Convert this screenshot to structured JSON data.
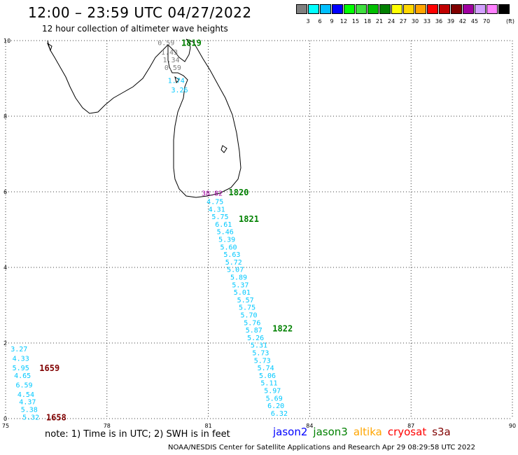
{
  "header": {
    "title": "12:00 – 23:59 UTC 04/27/2022",
    "subtitle": "12 hour collection of altimeter wave heights"
  },
  "color_scale": {
    "swatches": [
      {
        "label": "",
        "color": "#7f7f7f"
      },
      {
        "label": "3",
        "color": "#00ffff"
      },
      {
        "label": "6",
        "color": "#00bfff"
      },
      {
        "label": "9",
        "color": "#0000ff"
      },
      {
        "label": "12",
        "color": "#00ff00"
      },
      {
        "label": "15",
        "color": "#3fdf3f"
      },
      {
        "label": "18",
        "color": "#00bf00"
      },
      {
        "label": "21",
        "color": "#008000"
      },
      {
        "label": "24",
        "color": "#ffff00"
      },
      {
        "label": "27",
        "color": "#ffd700"
      },
      {
        "label": "30",
        "color": "#ffa500"
      },
      {
        "label": "33",
        "color": "#ff0000"
      },
      {
        "label": "36",
        "color": "#c00000"
      },
      {
        "label": "39",
        "color": "#800000"
      },
      {
        "label": "42",
        "color": "#a000a0"
      },
      {
        "label": "45",
        "color": "#d2a0ff"
      },
      {
        "label": "70",
        "color": "#ff80ff"
      },
      {
        "label": "",
        "color": "#000000"
      }
    ],
    "unit": "(ft)"
  },
  "axes": {
    "x": {
      "min": 75,
      "max": 90,
      "ticks": [
        "75",
        "78",
        "81",
        "84",
        "87",
        "90"
      ]
    },
    "y": {
      "min": 0,
      "max": 10,
      "ticks": [
        "0",
        "2",
        "4",
        "6",
        "8",
        "10"
      ]
    },
    "grid": "dotted"
  },
  "pass_labels": [
    {
      "text": "1819",
      "lon": 80.2,
      "lat": 9.95,
      "color": "#008000"
    },
    {
      "text": "1820",
      "lon": 81.6,
      "lat": 6.0,
      "color": "#008000"
    },
    {
      "text": "1821",
      "lon": 81.9,
      "lat": 5.3,
      "color": "#008000"
    },
    {
      "text": "1822",
      "lon": 82.9,
      "lat": 2.4,
      "color": "#008000"
    },
    {
      "text": "1659",
      "lon": 76.0,
      "lat": 1.35,
      "color": "#800000"
    },
    {
      "text": "1658",
      "lon": 76.2,
      "lat": 0.05,
      "color": "#800000"
    }
  ],
  "observations": [
    {
      "text": "0.59",
      "lon": 79.5,
      "lat": 9.95,
      "color": "#7f7f7f"
    },
    {
      "text": "1.43",
      "lon": 79.6,
      "lat": 9.7,
      "color": "#7f7f7f"
    },
    {
      "text": "1.34",
      "lon": 79.65,
      "lat": 9.5,
      "color": "#7f7f7f"
    },
    {
      "text": "0.59",
      "lon": 79.7,
      "lat": 9.3,
      "color": "#7f7f7f"
    },
    {
      "text": "1.74",
      "lon": 79.8,
      "lat": 8.95,
      "color": "#00c8ff"
    },
    {
      "text": "3.26",
      "lon": 79.9,
      "lat": 8.7,
      "color": "#00c8ff"
    },
    {
      "text": "38.82",
      "lon": 80.8,
      "lat": 5.97,
      "color": "#a000a0"
    },
    {
      "text": "4.75",
      "lon": 80.95,
      "lat": 5.75,
      "color": "#00c8ff"
    },
    {
      "text": "4.31",
      "lon": 81.0,
      "lat": 5.55,
      "color": "#00c8ff"
    },
    {
      "text": "5.75",
      "lon": 81.1,
      "lat": 5.35,
      "color": "#00c8ff"
    },
    {
      "text": "6.61",
      "lon": 81.2,
      "lat": 5.15,
      "color": "#00c8ff"
    },
    {
      "text": "5.46",
      "lon": 81.25,
      "lat": 4.95,
      "color": "#00c8ff"
    },
    {
      "text": "5.39",
      "lon": 81.3,
      "lat": 4.75,
      "color": "#00c8ff"
    },
    {
      "text": "5.60",
      "lon": 81.35,
      "lat": 4.55,
      "color": "#00c8ff"
    },
    {
      "text": "5.63",
      "lon": 81.45,
      "lat": 4.35,
      "color": "#00c8ff"
    },
    {
      "text": "5.72",
      "lon": 81.5,
      "lat": 4.15,
      "color": "#00c8ff"
    },
    {
      "text": "5.07",
      "lon": 81.55,
      "lat": 3.95,
      "color": "#00c8ff"
    },
    {
      "text": "5.89",
      "lon": 81.65,
      "lat": 3.75,
      "color": "#00c8ff"
    },
    {
      "text": "5.37",
      "lon": 81.7,
      "lat": 3.55,
      "color": "#00c8ff"
    },
    {
      "text": "5.01",
      "lon": 81.75,
      "lat": 3.35,
      "color": "#00c8ff"
    },
    {
      "text": "5.57",
      "lon": 81.85,
      "lat": 3.15,
      "color": "#00c8ff"
    },
    {
      "text": "5.75",
      "lon": 81.9,
      "lat": 2.95,
      "color": "#00c8ff"
    },
    {
      "text": "5.70",
      "lon": 81.95,
      "lat": 2.75,
      "color": "#00c8ff"
    },
    {
      "text": "5.76",
      "lon": 82.05,
      "lat": 2.55,
      "color": "#00c8ff"
    },
    {
      "text": "5.87",
      "lon": 82.1,
      "lat": 2.35,
      "color": "#00c8ff"
    },
    {
      "text": "5.26",
      "lon": 82.15,
      "lat": 2.15,
      "color": "#00c8ff"
    },
    {
      "text": "5.31",
      "lon": 82.25,
      "lat": 1.95,
      "color": "#00c8ff"
    },
    {
      "text": "5.73",
      "lon": 82.3,
      "lat": 1.75,
      "color": "#00c8ff"
    },
    {
      "text": "5.73",
      "lon": 82.35,
      "lat": 1.55,
      "color": "#00c8ff"
    },
    {
      "text": "5.74",
      "lon": 82.45,
      "lat": 1.35,
      "color": "#00c8ff"
    },
    {
      "text": "5.06",
      "lon": 82.5,
      "lat": 1.15,
      "color": "#00c8ff"
    },
    {
      "text": "5.11",
      "lon": 82.55,
      "lat": 0.95,
      "color": "#00c8ff"
    },
    {
      "text": "5.97",
      "lon": 82.65,
      "lat": 0.75,
      "color": "#00c8ff"
    },
    {
      "text": "5.69",
      "lon": 82.7,
      "lat": 0.55,
      "color": "#00c8ff"
    },
    {
      "text": "6.20",
      "lon": 82.75,
      "lat": 0.35,
      "color": "#00c8ff"
    },
    {
      "text": "6.32",
      "lon": 82.85,
      "lat": 0.15,
      "color": "#00c8ff"
    },
    {
      "text": "3.27",
      "lon": 75.15,
      "lat": 1.85,
      "color": "#00c8ff"
    },
    {
      "text": "4.33",
      "lon": 75.2,
      "lat": 1.6,
      "color": "#00c8ff"
    },
    {
      "text": "5.95",
      "lon": 75.2,
      "lat": 1.35,
      "color": "#00c8ff"
    },
    {
      "text": "4.65",
      "lon": 75.25,
      "lat": 1.15,
      "color": "#00c8ff"
    },
    {
      "text": "6.59",
      "lon": 75.3,
      "lat": 0.9,
      "color": "#00c8ff"
    },
    {
      "text": "4.54",
      "lon": 75.35,
      "lat": 0.65,
      "color": "#00c8ff"
    },
    {
      "text": "4.37",
      "lon": 75.4,
      "lat": 0.45,
      "color": "#00c8ff"
    },
    {
      "text": "5.38",
      "lon": 75.45,
      "lat": 0.25,
      "color": "#00c8ff"
    },
    {
      "text": "5.32",
      "lon": 75.5,
      "lat": 0.05,
      "color": "#00c8ff"
    }
  ],
  "footer": {
    "note": "note: 1) Time is in UTC; 2) SWH is in feet",
    "legend": [
      {
        "text": "jason2",
        "color": "#0000ff"
      },
      {
        "text": "jason3",
        "color": "#008000"
      },
      {
        "text": "altika",
        "color": "#ffa500"
      },
      {
        "text": "cryosat",
        "color": "#ff0000"
      },
      {
        "text": "s3a",
        "color": "#800000"
      }
    ],
    "credit": "NOAA/NESDIS Center for Satellite Applications and Research   Apr 29 08:29:58 UTC 2022"
  }
}
